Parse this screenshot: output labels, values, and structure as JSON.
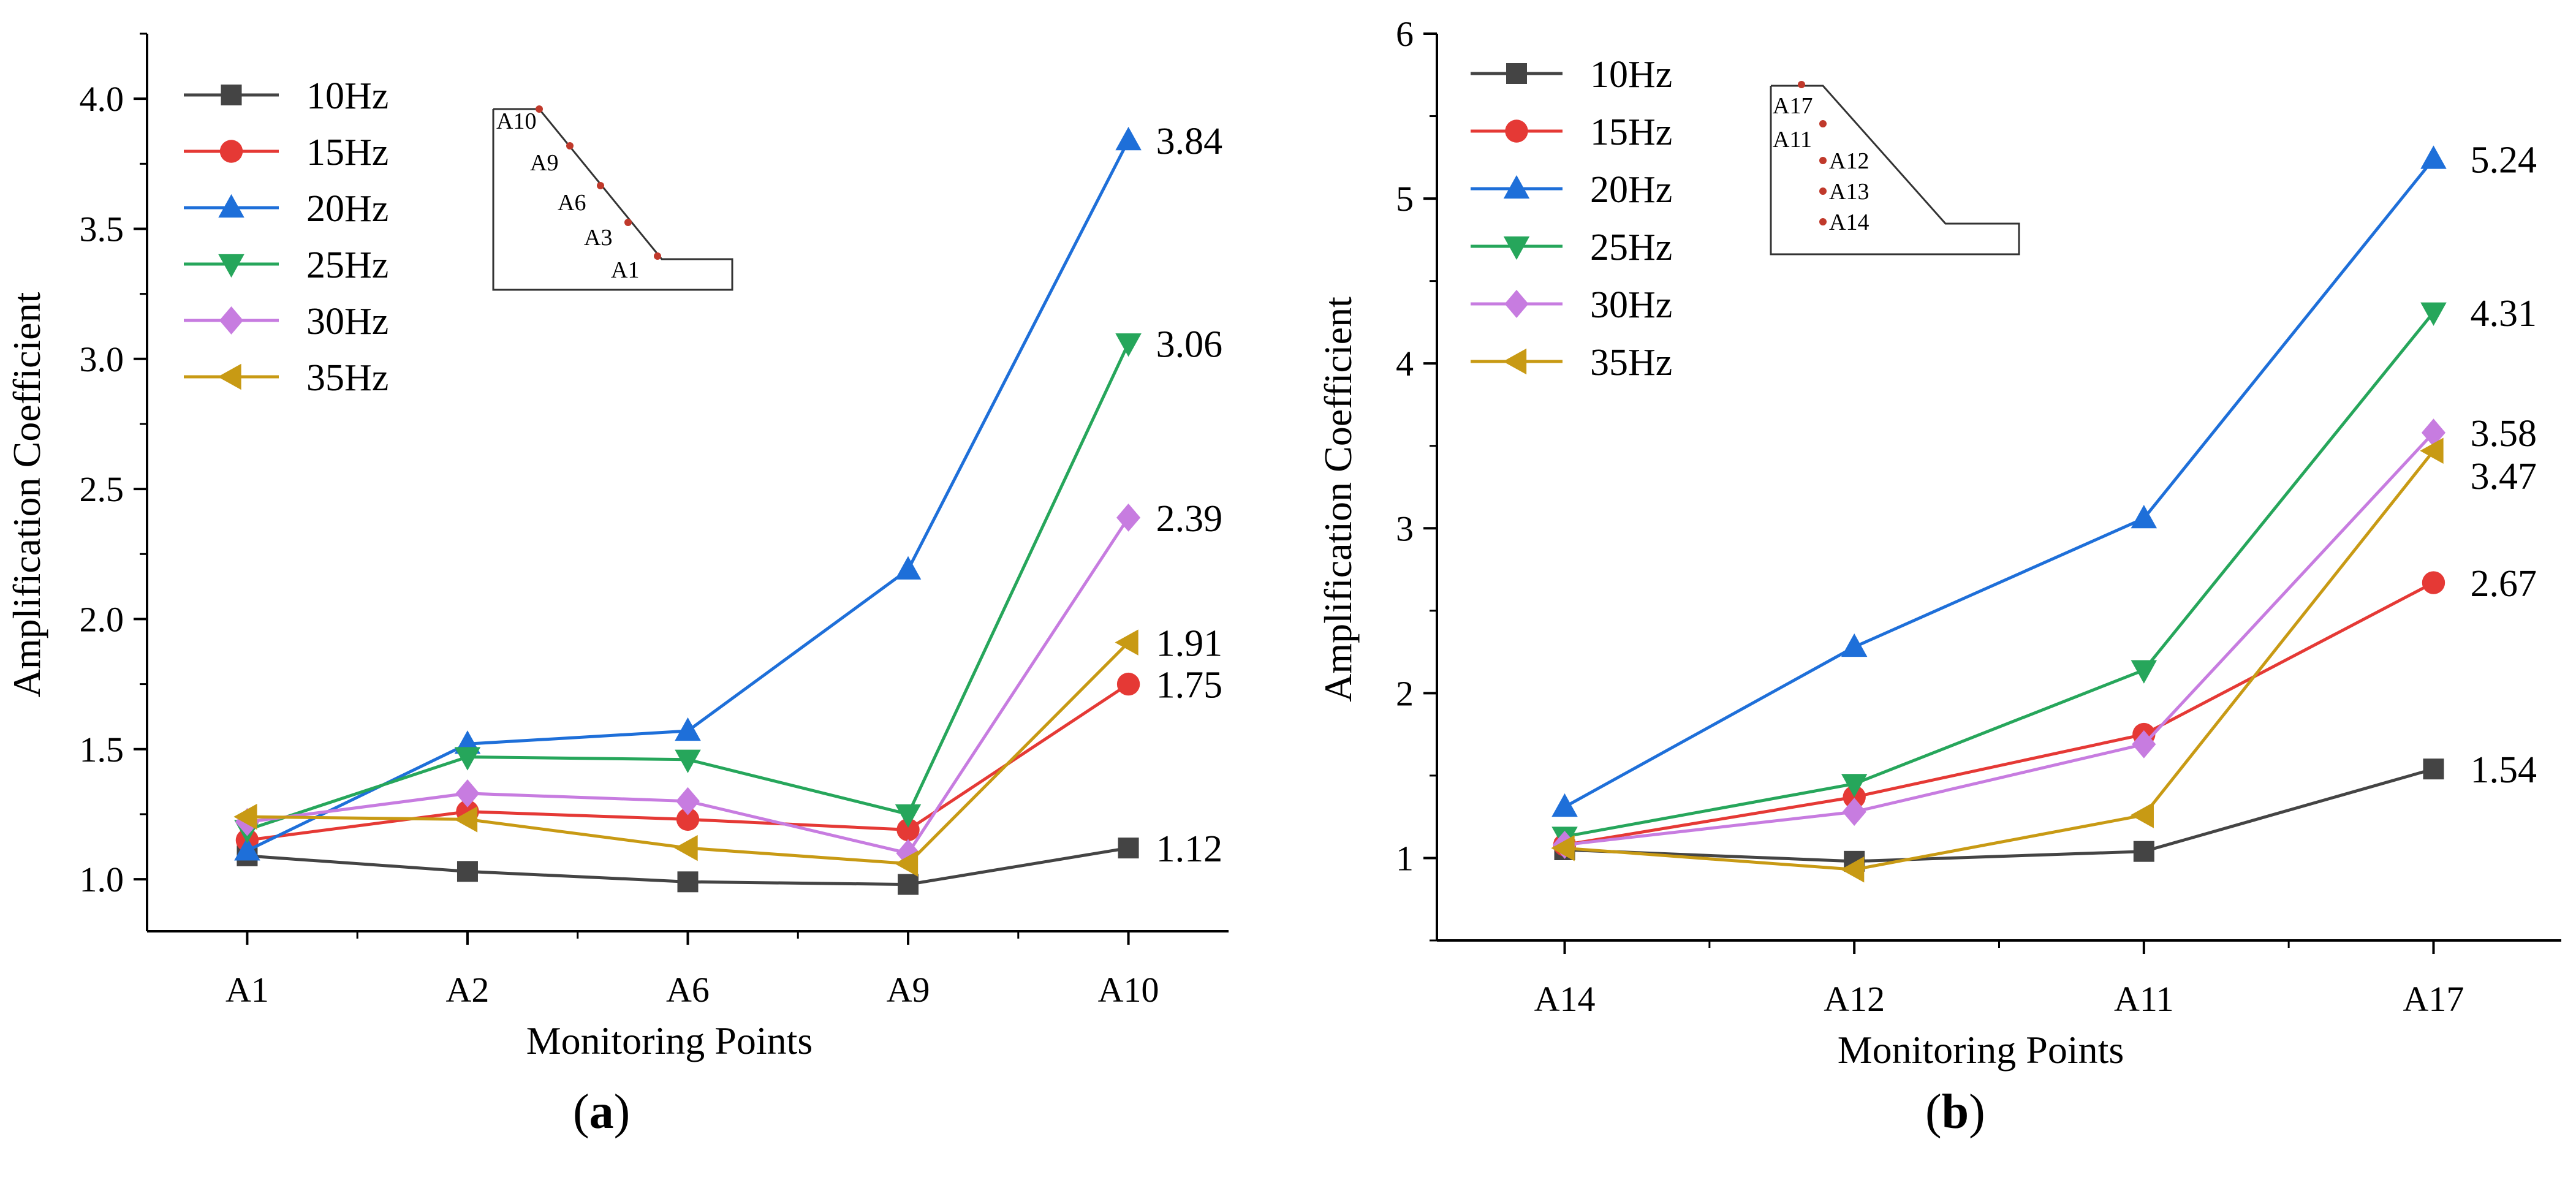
{
  "figure": {
    "panel_a_label": "a",
    "panel_b_label": "b"
  },
  "chart_data": [
    {
      "type": "line",
      "panel": "a",
      "xlabel": "Monitoring Points",
      "ylabel": "Amplification Coefficient",
      "categories": [
        "A1",
        "A2",
        "A6",
        "A9",
        "A10"
      ],
      "ylim": [
        0.8,
        4.25
      ],
      "yticks": [
        "1.0",
        "1.5",
        "2.0",
        "2.5",
        "3.0",
        "3.5",
        "4.0"
      ],
      "series": [
        {
          "name": "10Hz",
          "color": "#444444",
          "marker": "square",
          "values": [
            1.09,
            1.03,
            0.99,
            0.98,
            1.12
          ]
        },
        {
          "name": "15Hz",
          "color": "#e53935",
          "marker": "circle",
          "values": [
            1.15,
            1.26,
            1.23,
            1.19,
            1.75
          ]
        },
        {
          "name": "20Hz",
          "color": "#1e6fd9",
          "marker": "triangle-up",
          "values": [
            1.11,
            1.52,
            1.57,
            2.19,
            3.84
          ]
        },
        {
          "name": "25Hz",
          "color": "#26a65b",
          "marker": "triangle-down",
          "values": [
            1.19,
            1.47,
            1.46,
            1.25,
            3.06
          ]
        },
        {
          "name": "30Hz",
          "color": "#c77ce0",
          "marker": "diamond",
          "values": [
            1.22,
            1.33,
            1.3,
            1.1,
            2.39
          ]
        },
        {
          "name": "35Hz",
          "color": "#c89a14",
          "marker": "triangle-left",
          "values": [
            1.24,
            1.23,
            1.12,
            1.06,
            1.91
          ]
        }
      ],
      "end_labels": [
        {
          "series": "20Hz",
          "text": "3.84"
        },
        {
          "series": "25Hz",
          "text": "3.06"
        },
        {
          "series": "30Hz",
          "text": "2.39"
        },
        {
          "series": "35Hz",
          "text": "1.91"
        },
        {
          "series": "15Hz",
          "text": "1.75"
        },
        {
          "series": "10Hz",
          "text": "1.12"
        }
      ],
      "inset_points": [
        "A10",
        "A9",
        "A6",
        "A3",
        "A1"
      ]
    },
    {
      "type": "line",
      "panel": "b",
      "xlabel": "Monitoring Points",
      "ylabel": "Amplification Coefficient",
      "categories": [
        "A14",
        "A12",
        "A11",
        "A17"
      ],
      "ylim": [
        0.5,
        6.0
      ],
      "yticks": [
        "1",
        "2",
        "3",
        "4",
        "5",
        "6"
      ],
      "series": [
        {
          "name": "10Hz",
          "color": "#444444",
          "marker": "square",
          "values": [
            1.05,
            0.98,
            1.04,
            1.54
          ]
        },
        {
          "name": "15Hz",
          "color": "#e53935",
          "marker": "circle",
          "values": [
            1.08,
            1.37,
            1.75,
            2.67
          ]
        },
        {
          "name": "20Hz",
          "color": "#1e6fd9",
          "marker": "triangle-up",
          "values": [
            1.31,
            2.28,
            3.06,
            5.24
          ]
        },
        {
          "name": "25Hz",
          "color": "#26a65b",
          "marker": "triangle-down",
          "values": [
            1.13,
            1.45,
            2.14,
            4.31
          ]
        },
        {
          "name": "30Hz",
          "color": "#c77ce0",
          "marker": "diamond",
          "values": [
            1.08,
            1.28,
            1.69,
            3.58
          ]
        },
        {
          "name": "35Hz",
          "color": "#c89a14",
          "marker": "triangle-left",
          "values": [
            1.06,
            0.93,
            1.26,
            3.47
          ]
        }
      ],
      "end_labels": [
        {
          "series": "20Hz",
          "text": "5.24"
        },
        {
          "series": "25Hz",
          "text": "4.31"
        },
        {
          "series": "30Hz",
          "text": "3.58"
        },
        {
          "series": "35Hz",
          "text": "3.47"
        },
        {
          "series": "15Hz",
          "text": "2.67"
        },
        {
          "series": "10Hz",
          "text": "1.54"
        }
      ],
      "inset_points": [
        "A17",
        "A11",
        "A12",
        "A13",
        "A14"
      ]
    }
  ]
}
